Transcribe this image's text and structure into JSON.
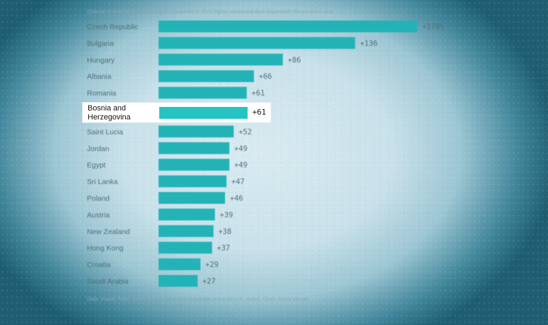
{
  "subtitle": "Change in searches for 2026 flights compared to 2025 flights conducted April-September the previous year",
  "source": "Data: Kayak; Note: Only includes destinations outside of the 50 U.S. states; Chart: Axios Visuals",
  "colors": {
    "bar": "#23b3b7",
    "highlight_bar": "#24c4c2",
    "label": "#4f6f7b"
  },
  "highlight": {
    "category": "Bosnia and Herzegovina",
    "value_label": "+61"
  },
  "chart_data": {
    "type": "bar",
    "orientation": "horizontal",
    "title": "",
    "xlabel": "",
    "ylabel": "",
    "xlim": [
      0,
      179
    ],
    "grid": false,
    "categories": [
      "Czech Republic",
      "Bulgaria",
      "Hungary",
      "Albania",
      "Romania",
      "Bosnia and Herzegovina",
      "Saint Lucia",
      "Jordan",
      "Egypt",
      "Sri Lanka",
      "Poland",
      "Austria",
      "New Zealand",
      "Hong Kong",
      "Croatia",
      "Saudi Arabia"
    ],
    "values": [
      179,
      136,
      86,
      66,
      61,
      61,
      52,
      49,
      49,
      47,
      46,
      39,
      38,
      37,
      29,
      27
    ],
    "value_labels": [
      "+179%",
      "+136",
      "+86",
      "+66",
      "+61",
      "+61",
      "+52",
      "+49",
      "+49",
      "+47",
      "+46",
      "+39",
      "+38",
      "+37",
      "+29",
      "+27"
    ]
  }
}
